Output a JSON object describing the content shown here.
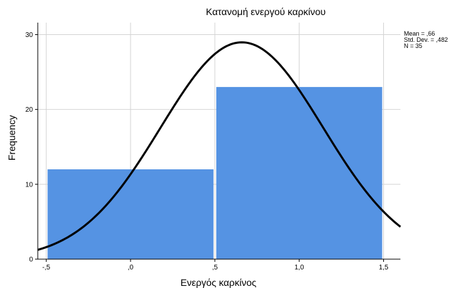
{
  "chart_data": {
    "type": "bar",
    "title": "Κατανομή ενεργού καρκίνου",
    "xlabel": "Ενεργός καρκίνος",
    "ylabel": "Frequency",
    "bins": [
      {
        "start": -0.5,
        "end": 0.5,
        "value": 12
      },
      {
        "start": 0.5,
        "end": 1.5,
        "value": 23
      }
    ],
    "xlim": [
      -0.55,
      1.6
    ],
    "ylim": [
      0,
      31.6
    ],
    "x_ticks": [
      {
        "value": -0.5,
        "label": "-,5"
      },
      {
        "value": 0.0,
        "label": ",0"
      },
      {
        "value": 0.5,
        "label": ",5"
      },
      {
        "value": 1.0,
        "label": "1,0"
      },
      {
        "value": 1.5,
        "label": "1,5"
      }
    ],
    "y_ticks": [
      {
        "value": 0,
        "label": "0"
      },
      {
        "value": 10,
        "label": "10"
      },
      {
        "value": 20,
        "label": "20"
      },
      {
        "value": 30,
        "label": "30"
      }
    ],
    "normal_curve": {
      "mean": 0.66,
      "std_dev": 0.482,
      "n": 35,
      "bin_width": 1
    },
    "stats_text": [
      "Mean = ,66",
      "Std. Dev. = ,482",
      "N = 35"
    ],
    "grid": true,
    "bar_color": "#5593e3",
    "curve_color": "#000000",
    "grid_color": "#d4d4d4"
  }
}
